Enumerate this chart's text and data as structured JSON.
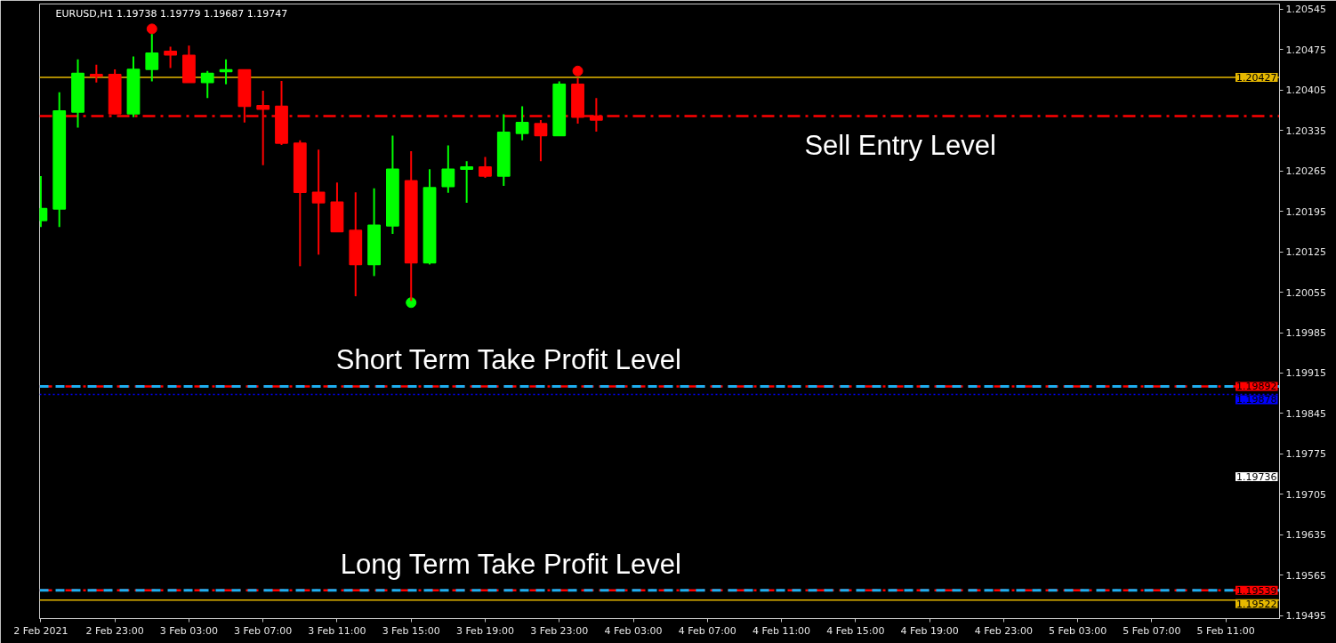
{
  "chart_data": {
    "type": "candlestick",
    "title": "EURUSD,H1  1.19738 1.19779 1.19687 1.19747",
    "x": [
      "2021-02-02T19:00",
      "2021-02-02T20:00",
      "2021-02-02T21:00",
      "2021-02-02T22:00",
      "2021-02-02T23:00",
      "2021-02-03T00:00",
      "2021-02-03T01:00",
      "2021-02-03T02:00",
      "2021-02-03T03:00",
      "2021-02-03T04:00",
      "2021-02-03T05:00",
      "2021-02-03T06:00",
      "2021-02-03T07:00",
      "2021-02-03T08:00",
      "2021-02-03T09:00",
      "2021-02-03T10:00",
      "2021-02-03T11:00",
      "2021-02-03T12:00",
      "2021-02-03T13:00",
      "2021-02-03T14:00",
      "2021-02-03T15:00",
      "2021-02-03T16:00",
      "2021-02-03T17:00",
      "2021-02-03T18:00",
      "2021-02-03T19:00",
      "2021-02-03T20:00",
      "2021-02-03T21:00",
      "2021-02-03T22:00",
      "2021-02-03T23:00",
      "2021-02-04T00:00",
      "2021-02-04T01:00"
    ],
    "ohlc": [
      [
        1.20179,
        1.20256,
        1.20168,
        1.202
      ],
      [
        1.20199,
        1.20401,
        1.20168,
        1.20369
      ],
      [
        1.20367,
        1.20458,
        1.2034,
        1.20434
      ],
      [
        1.20432,
        1.20449,
        1.20418,
        1.20429
      ],
      [
        1.20432,
        1.20441,
        1.20363,
        1.20364
      ],
      [
        1.20364,
        1.20463,
        1.20358,
        1.20441
      ],
      [
        1.20441,
        1.20502,
        1.2042,
        1.20469
      ],
      [
        1.20472,
        1.2048,
        1.20443,
        1.20466
      ],
      [
        1.20465,
        1.20482,
        1.20418,
        1.20418
      ],
      [
        1.20418,
        1.20438,
        1.20391,
        1.20434
      ],
      [
        1.20437,
        1.20458,
        1.20415,
        1.2044
      ],
      [
        1.2044,
        1.2044,
        1.20349,
        1.20377
      ],
      [
        1.20378,
        1.20404,
        1.20275,
        1.20372
      ],
      [
        1.20377,
        1.20421,
        1.2031,
        1.20313
      ],
      [
        1.20313,
        1.20318,
        1.201,
        1.20228
      ],
      [
        1.20228,
        1.20302,
        1.2012,
        1.2021
      ],
      [
        1.20211,
        1.20245,
        1.2016,
        1.2016
      ],
      [
        1.20162,
        1.20228,
        1.20048,
        1.20103
      ],
      [
        1.20103,
        1.20235,
        1.20083,
        1.20171
      ],
      [
        1.2017,
        1.20326,
        1.20156,
        1.20268
      ],
      [
        1.20248,
        1.20299,
        1.2004,
        1.20106
      ],
      [
        1.20106,
        1.20268,
        1.20103,
        1.20236
      ],
      [
        1.20238,
        1.20309,
        1.20227,
        1.20268
      ],
      [
        1.20268,
        1.20282,
        1.2021,
        1.20272
      ],
      [
        1.20272,
        1.20289,
        1.20253,
        1.20256
      ],
      [
        1.20256,
        1.20363,
        1.20239,
        1.20332
      ],
      [
        1.2033,
        1.20377,
        1.20318,
        1.20349
      ],
      [
        1.20347,
        1.20353,
        1.20282,
        1.20326
      ],
      [
        1.20326,
        1.2042,
        1.20326,
        1.20415
      ],
      [
        1.20415,
        1.20426,
        1.20347,
        1.20358
      ],
      [
        1.2036,
        1.20391,
        1.20333,
        1.20353
      ]
    ],
    "colors": [
      "#00ff00",
      "#00ff00",
      "#00ff00",
      "#ff0000",
      "#ff0000",
      "#00ff00",
      "#00ff00",
      "#ff0000",
      "#ff0000",
      "#00ff00",
      "#00ff00",
      "#ff0000",
      "#ff0000",
      "#ff0000",
      "#ff0000",
      "#ff0000",
      "#ff0000",
      "#ff0000",
      "#00ff00",
      "#00ff00",
      "#ff0000",
      "#00ff00",
      "#00ff00",
      "#00ff00",
      "#ff0000",
      "#00ff00",
      "#00ff00",
      "#ff0000",
      "#00ff00",
      "#ff0000",
      "#ff0000"
    ],
    "series": [
      {
        "type": "scatter",
        "color": "#ff0000",
        "x": [
          "2021-02-03T01:00",
          "2021-02-04T00:00"
        ],
        "values": [
          1.20511,
          1.20438
        ]
      },
      {
        "type": "scatter",
        "color": "#00ff00",
        "x": [
          "2021-02-03T15:00"
        ],
        "values": [
          1.20037
        ]
      }
    ],
    "marker": "circle",
    "xlim": [
      "2021-02-02T18:56",
      "2021-02-05T13:54"
    ],
    "xticks": [
      {
        "value": "2021-02-02T19:00",
        "label": "2 Feb 2021"
      },
      {
        "value": "2021-02-02T23:00",
        "label": "2 Feb 23:00"
      },
      {
        "value": "2021-02-03T03:00",
        "label": "3 Feb 03:00"
      },
      {
        "value": "2021-02-03T07:00",
        "label": "3 Feb 07:00"
      },
      {
        "value": "2021-02-03T11:00",
        "label": "3 Feb 11:00"
      },
      {
        "value": "2021-02-03T15:00",
        "label": "3 Feb 15:00"
      },
      {
        "value": "2021-02-03T19:00",
        "label": "3 Feb 19:00"
      },
      {
        "value": "2021-02-03T23:00",
        "label": "3 Feb 23:00"
      },
      {
        "value": "2021-02-04T03:00",
        "label": "4 Feb 03:00"
      },
      {
        "value": "2021-02-04T07:00",
        "label": "4 Feb 07:00"
      },
      {
        "value": "2021-02-04T11:00",
        "label": "4 Feb 11:00"
      },
      {
        "value": "2021-02-04T15:00",
        "label": "4 Feb 15:00"
      },
      {
        "value": "2021-02-04T19:00",
        "label": "4 Feb 19:00"
      },
      {
        "value": "2021-02-04T23:00",
        "label": "4 Feb 23:00"
      },
      {
        "value": "2021-02-05T03:00",
        "label": "5 Feb 03:00"
      },
      {
        "value": "2021-02-05T07:00",
        "label": "5 Feb 07:00"
      },
      {
        "value": "2021-02-05T11:00",
        "label": "5 Feb 11:00"
      }
    ],
    "ylim": [
      1.1949,
      1.20554
    ],
    "yticks": [
      1.20545,
      1.20475,
      1.20405,
      1.20335,
      1.20265,
      1.20195,
      1.20125,
      1.20055,
      1.19985,
      1.19915,
      1.19845,
      1.19775,
      1.19705,
      1.19635,
      1.19565,
      1.19495
    ],
    "ref_lines": [
      {
        "axis": "y",
        "value": 1.20427,
        "label": "1.20427",
        "color": "#e6b800",
        "line_style": "solid"
      },
      {
        "axis": "y",
        "value": 1.2036,
        "color": "#ff0000",
        "line_style": "dashdot"
      },
      {
        "axis": "y",
        "value": 1.19892,
        "label": "1.19892",
        "color": "#ff0000",
        "line_style": "dashdot"
      },
      {
        "axis": "y",
        "value": 1.19892,
        "color": "#1eaef0",
        "line_style": "dashed"
      },
      {
        "axis": "y",
        "value": 1.19878,
        "label": "1.19878",
        "color": "#0000ff",
        "line_style": "dotted"
      },
      {
        "axis": "y",
        "value": 1.19539,
        "label": "1.19539",
        "color": "#ff0000",
        "line_style": "dashdot"
      },
      {
        "axis": "y",
        "value": 1.19539,
        "color": "#1eaef0",
        "line_style": "dashed"
      },
      {
        "axis": "y",
        "value": 1.19522,
        "label": "1.19522",
        "color": "#e6b800",
        "line_style": "solid"
      }
    ],
    "annotations": [
      {
        "text": "Sell Entry Level",
        "x": "2021-02-04T17:25",
        "y": 1.2036
      },
      {
        "text": "Short Term Take Profit  Level",
        "x": "2021-02-03T20:30",
        "y": 1.19892
      },
      {
        "text": "Long Term Take Profit Level",
        "x": "2021-02-03T20:25",
        "y": 1.19539
      },
      "1.19736"
    ]
  }
}
